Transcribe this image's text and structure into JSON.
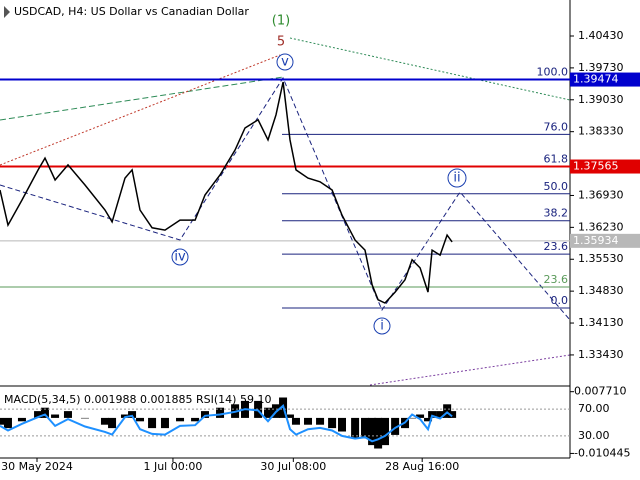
{
  "chart_data": {
    "type": "line",
    "title": "USDCAD, H4:  US Dollar vs Canadian Dollar",
    "x": [
      -209,
      -164,
      -85,
      6,
      45,
      102,
      175,
      271,
      384,
      424,
      497,
      537,
      582,
      650,
      723,
      808,
      893,
      949,
      1034,
      1119,
      1175,
      1249,
      1305,
      1350,
      1390,
      1429,
      1463,
      1531,
      1599,
      1667,
      1723,
      1797,
      1853,
      1893,
      1927,
      1966,
      2023,
      2079,
      2119,
      2164,
      2209,
      2232,
      2277,
      2317,
      2345
    ],
    "series": [
      {
        "color": "#000000",
        "values": [
          1.3705,
          1.3628,
          1.3683,
          1.3749,
          1.3775,
          1.3727,
          1.376,
          1.3716,
          1.3661,
          1.3635,
          1.3731,
          1.3749,
          1.3661,
          1.3622,
          1.3617,
          1.3639,
          1.3639,
          1.3694,
          1.3738,
          1.3793,
          1.3841,
          1.3859,
          1.3815,
          1.387,
          1.3942,
          1.3815,
          1.3749,
          1.3731,
          1.3723,
          1.3705,
          1.365,
          1.3595,
          1.3573,
          1.3497,
          1.3464,
          1.3457,
          1.3481,
          1.3508,
          1.3552,
          1.3534,
          1.3481,
          1.3573,
          1.3562,
          1.3606,
          1.3591
        ]
      }
    ],
    "xlim": [
      -209,
      3011
    ],
    "xticks": [
      {
        "value": 0,
        "label": "30 May 2024"
      },
      {
        "value": 768,
        "label": "1 Jul 00:00"
      },
      {
        "value": 1448,
        "label": "30 Jul 08:00"
      },
      {
        "value": 2176,
        "label": "28 Aug 16:00"
      }
    ],
    "ylim": [
      1.3277,
      1.4122
    ],
    "yticks": [
      {
        "value": 1.4043,
        "label": "1.40430"
      },
      {
        "value": 1.3973,
        "label": "1.39730"
      },
      {
        "value": 1.3903,
        "label": "1.39030"
      },
      {
        "value": 1.3833,
        "label": "1.38330"
      },
      {
        "value": 1.3693,
        "label": "1.36930"
      },
      {
        "value": 1.3623,
        "label": "1.36230"
      },
      {
        "value": 1.3553,
        "label": "1.35530"
      },
      {
        "value": 1.3483,
        "label": "1.34830"
      },
      {
        "value": 1.3413,
        "label": "1.34130"
      },
      {
        "value": 1.3343,
        "label": "1.33430"
      }
    ],
    "price_lines": [
      {
        "value": 1.39474,
        "color": "#0000cd"
      },
      {
        "value": 1.37565,
        "color": "#e00000"
      },
      {
        "value": 1.35934,
        "color": "#b8b8b8"
      }
    ],
    "fib_color": "#1a237e",
    "fib_levels": [
      {
        "value": 1.39474,
        "label": "100.0"
      },
      {
        "value": 1.38271,
        "label": "76.0"
      },
      {
        "value": 1.37565,
        "label": "61.8"
      },
      {
        "value": 1.36967,
        "label": "50.0"
      },
      {
        "value": 1.36375,
        "label": "38.2"
      },
      {
        "value": 1.35643,
        "label": "23.6"
      },
      {
        "value": 1.3446,
        "label": "0.0"
      }
    ],
    "green_level": {
      "value": 1.34922,
      "label": "23.6",
      "color": "#5a9a5a"
    },
    "waves": {
      "w1": "(1)",
      "w5": "5",
      "wv": "v",
      "wiv": "iv",
      "wi": "i",
      "wii": "ii"
    },
    "indicator": {
      "title": "MACD(5,34,5) 0.001988 0.001885 RSI(14) 59.10",
      "macd_values": [
        -0.002,
        -0.003,
        -0.001,
        0.002,
        0.003,
        0.001,
        0.002,
        0,
        -0.002,
        -0.003,
        0.001,
        0.002,
        -0.001,
        -0.003,
        -0.003,
        -0.001,
        -0.001,
        0.002,
        0.003,
        0.004,
        0.005,
        0.005,
        0.003,
        0.004,
        0.006,
        0.001,
        -0.002,
        -0.002,
        -0.002,
        -0.003,
        -0.004,
        -0.006,
        -0.006,
        -0.008,
        -0.009,
        -0.008,
        -0.005,
        -0.003,
        0,
        0.001,
        -0.001,
        0.002,
        0.002,
        0.004,
        0.002
      ],
      "macd_ylim": [
        -0.0112,
        0.0085
      ],
      "macd_yticks": [
        {
          "value": 0.00771,
          "label": "0.007710"
        },
        {
          "value": -0.010445,
          "label": "-0.010445"
        }
      ],
      "rsi_color": "#1e90ff",
      "rsi_values": [
        45,
        38,
        48,
        58,
        62,
        45,
        55,
        44,
        36,
        32,
        58,
        60,
        40,
        33,
        32,
        45,
        46,
        60,
        62,
        66,
        70,
        68,
        52,
        66,
        75,
        40,
        32,
        40,
        42,
        38,
        30,
        26,
        28,
        22,
        25,
        30,
        42,
        50,
        62,
        55,
        40,
        60,
        56,
        65,
        59.1
      ],
      "rsi_ylim": [
        0,
        100
      ],
      "rsi_levels": [
        {
          "value": 70,
          "label": "70.00"
        },
        {
          "value": 30,
          "label": "30.00"
        }
      ]
    }
  }
}
